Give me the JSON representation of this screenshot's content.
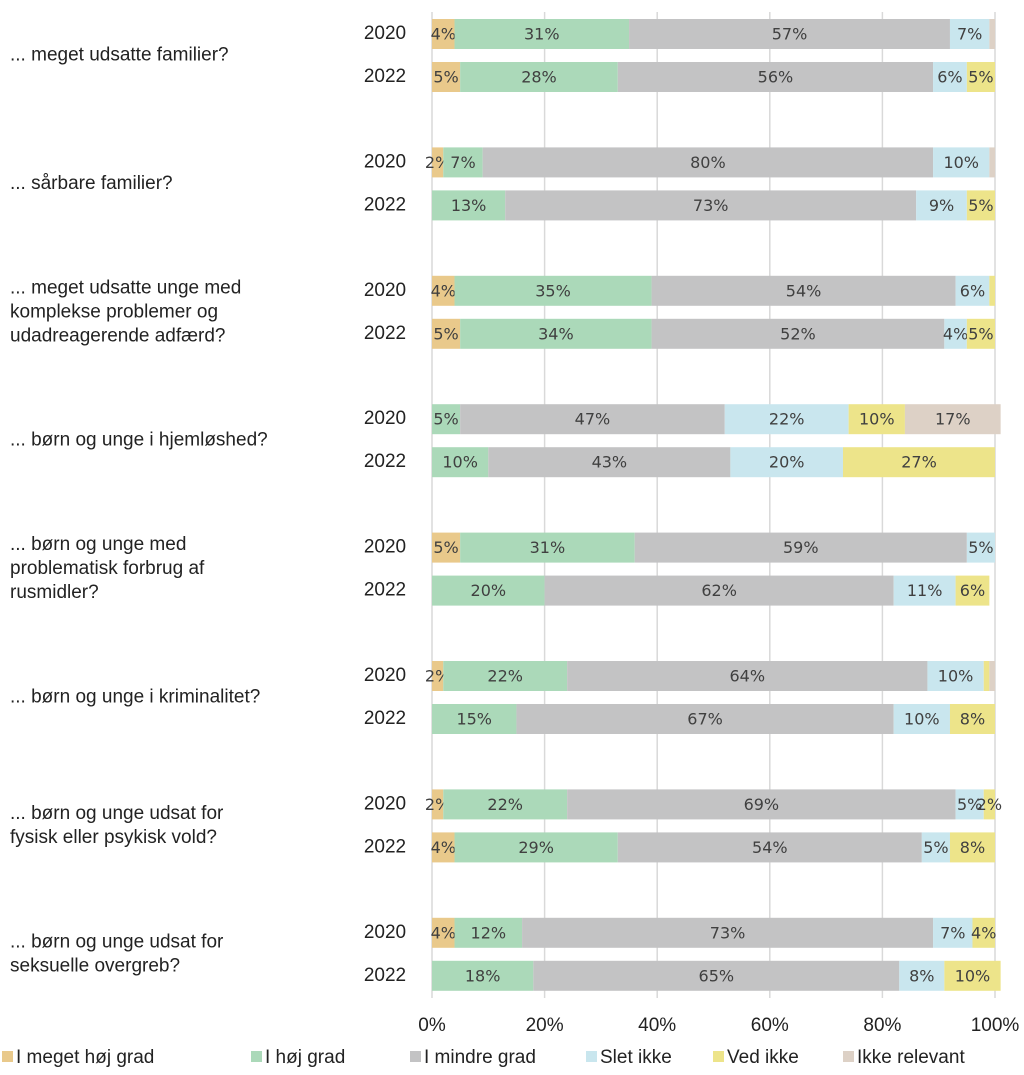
{
  "chart_data": {
    "type": "stacked-barh-100",
    "groups": [
      {
        "label": [
          "... meget udsatte familier?"
        ],
        "years": [
          "2020",
          "2022"
        ]
      },
      {
        "label": [
          "... sårbare familier?"
        ],
        "years": [
          "2020",
          "2022"
        ]
      },
      {
        "label": [
          "... meget udsatte unge med",
          "komplekse problemer og",
          "udadreagerende adfærd?"
        ],
        "years": [
          "2020",
          "2022"
        ]
      },
      {
        "label": [
          "... børn og unge i hjemløshed?"
        ],
        "years": [
          "2020",
          "2022"
        ]
      },
      {
        "label": [
          "... børn og unge med",
          "problematisk forbrug af",
          "rusmidler?"
        ],
        "years": [
          "2020",
          "2022"
        ]
      },
      {
        "label": [
          "... børn og unge i kriminalitet?"
        ],
        "years": [
          "2020",
          "2022"
        ]
      },
      {
        "label": [
          "... børn og unge udsat for",
          "fysisk eller psykisk vold?"
        ],
        "years": [
          "2020",
          "2022"
        ]
      },
      {
        "label": [
          "... børn og unge udsat for",
          "seksuelle overgreb?"
        ],
        "years": [
          "2020",
          "2022"
        ]
      }
    ],
    "series": [
      {
        "name": "I meget høj grad",
        "color": "#e9c98b",
        "values": [
          4,
          5,
          2,
          0,
          4,
          5,
          0,
          0,
          5,
          0,
          2,
          0,
          2,
          4,
          4,
          0
        ],
        "value_labels": [
          "4%",
          "5%",
          "2%",
          null,
          "4%",
          "5%",
          null,
          null,
          "5%",
          null,
          "2%",
          null,
          "2%",
          "4%",
          "4%",
          null
        ]
      },
      {
        "name": "I høj grad",
        "color": "#abd9b9",
        "values": [
          31,
          28,
          7,
          13,
          35,
          34,
          5,
          10,
          31,
          20,
          22,
          15,
          22,
          29,
          12,
          18
        ],
        "value_labels": [
          "31%",
          "28%",
          "7%",
          "13%",
          "35%",
          "34%",
          "5%",
          "10%",
          "31%",
          "20%",
          "22%",
          "15%",
          "22%",
          "29%",
          "12%",
          "18%"
        ]
      },
      {
        "name": "I mindre grad",
        "color": "#c3c3c4",
        "values": [
          57,
          56,
          80,
          73,
          54,
          52,
          47,
          43,
          59,
          62,
          64,
          67,
          69,
          54,
          73,
          65
        ],
        "value_labels": [
          "57%",
          "56%",
          "80%",
          "73%",
          "54%",
          "52%",
          "47%",
          "43%",
          "59%",
          "62%",
          "64%",
          "67%",
          "69%",
          "54%",
          "73%",
          "65%"
        ]
      },
      {
        "name": "Slet ikke",
        "color": "#c9e6ee",
        "values": [
          7,
          6,
          10,
          9,
          6,
          4,
          22,
          20,
          5,
          11,
          10,
          10,
          5,
          5,
          7,
          8
        ],
        "value_labels": [
          "7%",
          "6%",
          "10%",
          "9%",
          "6%",
          "4%",
          "22%",
          "20%",
          "5%",
          "11%",
          "10%",
          "10%",
          "5%",
          "5%",
          "7%",
          "8%"
        ]
      },
      {
        "name": "Ved ikke",
        "color": "#ede48a",
        "values": [
          0,
          5,
          0,
          5,
          1,
          5,
          10,
          27,
          0,
          6,
          1,
          8,
          2,
          8,
          4,
          10
        ],
        "value_labels": [
          null,
          "5%",
          null,
          "5%",
          null,
          "5%",
          "10%",
          "27%",
          null,
          "6%",
          null,
          "8%",
          "2%",
          "8%",
          "4%",
          "10%"
        ]
      },
      {
        "name": "Ikke relevant",
        "color": "#ddd1c6",
        "values": [
          1,
          0,
          1,
          0,
          0,
          0,
          17,
          0,
          0,
          0,
          1,
          0,
          0,
          0,
          0,
          0
        ],
        "value_labels": [
          null,
          null,
          null,
          null,
          null,
          null,
          "17%",
          null,
          null,
          null,
          null,
          null,
          null,
          null,
          null,
          null
        ]
      }
    ],
    "xlim": [
      0,
      100
    ],
    "xticks": [
      {
        "value": 0,
        "label": "0%"
      },
      {
        "value": 20,
        "label": "20%"
      },
      {
        "value": 40,
        "label": "40%"
      },
      {
        "value": 60,
        "label": "60%"
      },
      {
        "value": 80,
        "label": "80%"
      },
      {
        "value": 100,
        "label": "100%"
      }
    ],
    "grid": true,
    "legend": "bottom"
  }
}
